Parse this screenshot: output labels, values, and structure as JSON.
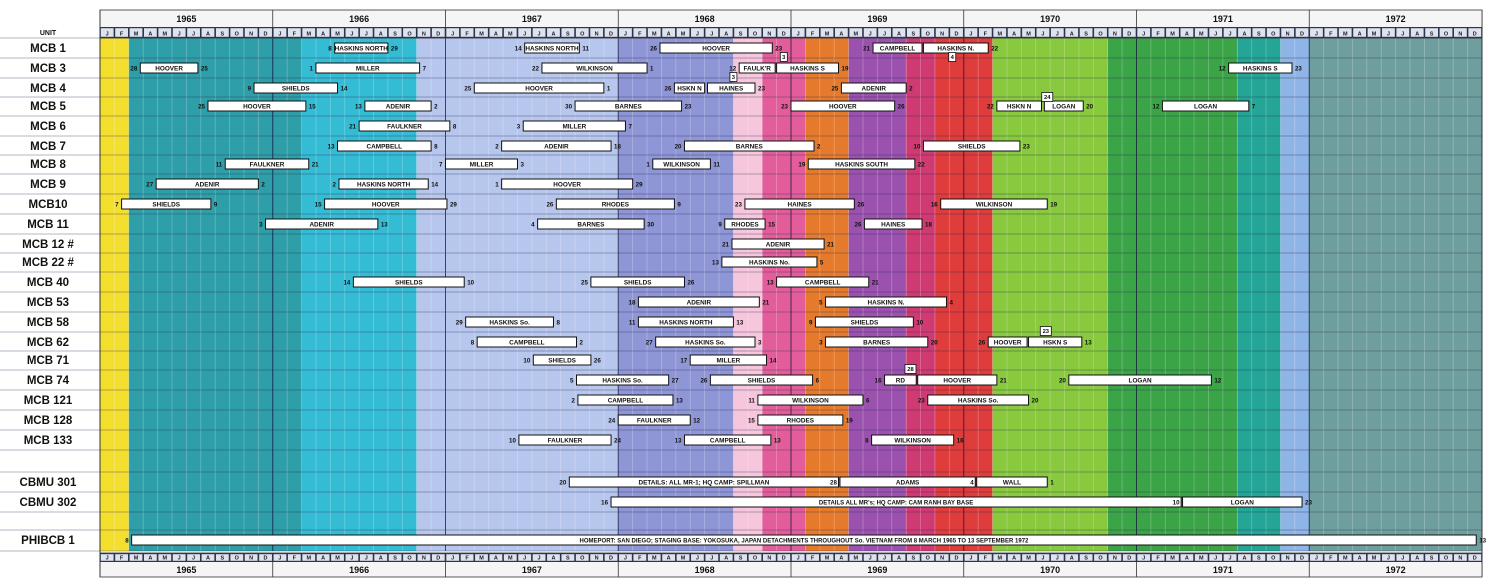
{
  "chart_data": {
    "type": "table",
    "unit_header": "UNIT",
    "years": [
      "1965",
      "1966",
      "1967",
      "1968",
      "1969",
      "1970",
      "1971",
      "1972"
    ],
    "months": [
      "J",
      "F",
      "M",
      "A",
      "M",
      "J",
      "J",
      "A",
      "S",
      "O",
      "N",
      "D"
    ],
    "bands": [
      {
        "start": 0,
        "end": 2,
        "color": "#f4de2e"
      },
      {
        "start": 2,
        "end": 14,
        "color": "#2e9ea8"
      },
      {
        "start": 14,
        "end": 22,
        "color": "#35bcd5"
      },
      {
        "start": 22,
        "end": 36,
        "color": "#b7c6ec"
      },
      {
        "start": 36,
        "end": 44,
        "color": "#8f96d6"
      },
      {
        "start": 44,
        "end": 46,
        "color": "#f6c6dc"
      },
      {
        "start": 46,
        "end": 49,
        "color": "#e25d9a"
      },
      {
        "start": 49,
        "end": 52,
        "color": "#e57a2c"
      },
      {
        "start": 52,
        "end": 56,
        "color": "#9b52ae"
      },
      {
        "start": 56,
        "end": 58,
        "color": "#d03a72"
      },
      {
        "start": 58,
        "end": 62,
        "color": "#df3c3c"
      },
      {
        "start": 62,
        "end": 70,
        "color": "#88c93e"
      },
      {
        "start": 70,
        "end": 79,
        "color": "#3aa447"
      },
      {
        "start": 79,
        "end": 82,
        "color": "#24a596"
      },
      {
        "start": 82,
        "end": 84,
        "color": "#8fb4e6"
      },
      {
        "start": 84,
        "end": 96,
        "color": "#6f9e9e"
      }
    ],
    "units": [
      "MCB 1",
      "MCB 3",
      "MCB 4",
      "MCB 5",
      "MCB 6",
      "MCB 7",
      "MCB 8",
      "MCB 9",
      "MCB10",
      "MCB 11",
      "MCB 12 #",
      "MCB 22 #",
      "MCB 40",
      "MCB 53",
      "MCB 58",
      "MCB 62",
      "MCB 71",
      "MCB 74",
      "MCB 121",
      "MCB 128",
      "MCB 133",
      "CBMU 301",
      "CBMU 302",
      "PHIBCB 1"
    ],
    "deployments": [
      {
        "row": 0,
        "start": 16.3,
        "end": 20.0,
        "label": "HASKINS NORTH",
        "from": "8",
        "to": "29"
      },
      {
        "row": 0,
        "start": 29.5,
        "end": 33.3,
        "label": "HASKINS NORTH",
        "from": "14",
        "to": "11"
      },
      {
        "row": 0,
        "start": 38.9,
        "end": 46.7,
        "label": "HOOVER",
        "from": "26",
        "to": "23"
      },
      {
        "row": 0,
        "start": 53.7,
        "end": 57.1,
        "label": "CAMPBELL",
        "from": "21",
        "to": ""
      },
      {
        "row": 0,
        "start": 57.2,
        "end": 61.7,
        "label": "HASKINS N.",
        "from": "",
        "to": "22"
      },
      {
        "row": 1,
        "start": 2.8,
        "end": 6.8,
        "label": "HOOVER",
        "from": "28",
        "to": "25"
      },
      {
        "row": 1,
        "start": 15.0,
        "end": 22.2,
        "label": "MILLER",
        "from": "1",
        "to": "7"
      },
      {
        "row": 1,
        "start": 30.7,
        "end": 38.0,
        "label": "WILKINSON",
        "from": "22",
        "to": "1"
      },
      {
        "row": 1,
        "start": 44.4,
        "end": 46.9,
        "label": "FAULK'R",
        "from": "12",
        "to": ""
      },
      {
        "row": 1,
        "start": 47.0,
        "end": 51.3,
        "label": "HASKINS S",
        "from": "",
        "to": "19"
      },
      {
        "row": 1,
        "start": 78.4,
        "end": 82.8,
        "label": "HASKINS S",
        "from": "12",
        "to": "23"
      },
      {
        "row": 2,
        "start": 10.7,
        "end": 16.5,
        "label": "SHIELDS",
        "from": "9",
        "to": "14"
      },
      {
        "row": 2,
        "start": 26.0,
        "end": 35.0,
        "label": "HOOVER",
        "from": "25",
        "to": "1"
      },
      {
        "row": 2,
        "start": 39.9,
        "end": 42.0,
        "label": "HSKN N",
        "from": "26",
        "to": ""
      },
      {
        "row": 2,
        "start": 42.2,
        "end": 45.5,
        "label": "HAINES",
        "from": "",
        "to": "23"
      },
      {
        "row": 2,
        "start": 51.5,
        "end": 56.0,
        "label": "ADENIR",
        "from": "25",
        "to": "2"
      },
      {
        "row": 3,
        "start": 7.5,
        "end": 14.3,
        "label": "HOOVER",
        "from": "25",
        "to": "15"
      },
      {
        "row": 3,
        "start": 18.4,
        "end": 23.0,
        "label": "ADENIR",
        "from": "13",
        "to": "2"
      },
      {
        "row": 3,
        "start": 33.0,
        "end": 40.4,
        "label": "BARNES",
        "from": "30",
        "to": "23"
      },
      {
        "row": 3,
        "start": 48.0,
        "end": 55.2,
        "label": "HOOVER",
        "from": "23",
        "to": "26"
      },
      {
        "row": 3,
        "start": 62.3,
        "end": 65.4,
        "label": "HSKN N",
        "from": "22",
        "to": ""
      },
      {
        "row": 3,
        "start": 65.6,
        "end": 68.3,
        "label": "LOGAN",
        "from": "",
        "to": "20"
      },
      {
        "row": 3,
        "start": 73.8,
        "end": 79.8,
        "label": "LOGAN",
        "from": "12",
        "to": "7"
      },
      {
        "row": 4,
        "start": 18.0,
        "end": 24.3,
        "label": "FAULKNER",
        "from": "21",
        "to": "8"
      },
      {
        "row": 4,
        "start": 29.4,
        "end": 36.5,
        "label": "MILLER",
        "from": "3",
        "to": "7"
      },
      {
        "row": 5,
        "start": 16.5,
        "end": 23.0,
        "label": "CAMPBELL",
        "from": "13",
        "to": "8"
      },
      {
        "row": 5,
        "start": 27.9,
        "end": 35.5,
        "label": "ADENIR",
        "from": "2",
        "to": "18"
      },
      {
        "row": 5,
        "start": 40.6,
        "end": 49.6,
        "label": "BARNES",
        "from": "20",
        "to": "2"
      },
      {
        "row": 5,
        "start": 57.2,
        "end": 63.9,
        "label": "SHIELDS",
        "from": "10",
        "to": "23"
      },
      {
        "row": 6,
        "start": 8.7,
        "end": 14.5,
        "label": "FAULKNER",
        "from": "11",
        "to": "21"
      },
      {
        "row": 6,
        "start": 24.0,
        "end": 29.0,
        "label": "MILLER",
        "from": "7",
        "to": "3"
      },
      {
        "row": 6,
        "start": 38.4,
        "end": 42.4,
        "label": "WILKINSON",
        "from": "1",
        "to": "11"
      },
      {
        "row": 6,
        "start": 49.2,
        "end": 56.6,
        "label": "HASKINS SOUTH",
        "from": "19",
        "to": "22"
      },
      {
        "row": 7,
        "start": 3.9,
        "end": 11.0,
        "label": "ADENIR",
        "from": "27",
        "to": "2"
      },
      {
        "row": 7,
        "start": 16.6,
        "end": 22.8,
        "label": "HASKINS NORTH",
        "from": "2",
        "to": "14"
      },
      {
        "row": 7,
        "start": 27.9,
        "end": 37.0,
        "label": "HOOVER",
        "from": "1",
        "to": "29"
      },
      {
        "row": 8,
        "start": 1.5,
        "end": 7.7,
        "label": "SHIELDS",
        "from": "7",
        "to": "9"
      },
      {
        "row": 8,
        "start": 15.6,
        "end": 24.1,
        "label": "HOOVER",
        "from": "15",
        "to": "29"
      },
      {
        "row": 8,
        "start": 31.7,
        "end": 39.9,
        "label": "RHODES",
        "from": "26",
        "to": "9"
      },
      {
        "row": 8,
        "start": 44.8,
        "end": 52.4,
        "label": "HAINES",
        "from": "23",
        "to": "26"
      },
      {
        "row": 8,
        "start": 58.4,
        "end": 65.8,
        "label": "WILKINSON",
        "from": "16",
        "to": "19"
      },
      {
        "row": 9,
        "start": 11.5,
        "end": 19.3,
        "label": "ADENIR",
        "from": "3",
        "to": "13"
      },
      {
        "row": 9,
        "start": 30.4,
        "end": 37.8,
        "label": "BARNES",
        "from": "4",
        "to": "30"
      },
      {
        "row": 9,
        "start": 43.4,
        "end": 46.2,
        "label": "RHODES",
        "from": "9",
        "to": "15"
      },
      {
        "row": 9,
        "start": 53.1,
        "end": 57.1,
        "label": "HAINES",
        "from": "26",
        "to": "18"
      },
      {
        "row": 10,
        "start": 43.9,
        "end": 50.3,
        "label": "ADENIR",
        "from": "21",
        "to": "21"
      },
      {
        "row": 11,
        "start": 43.2,
        "end": 49.8,
        "label": "HASKINS No.",
        "from": "13",
        "to": "5"
      },
      {
        "row": 12,
        "start": 17.6,
        "end": 25.3,
        "label": "SHIELDS",
        "from": "14",
        "to": "10"
      },
      {
        "row": 12,
        "start": 34.1,
        "end": 40.6,
        "label": "SHIELDS",
        "from": "25",
        "to": "26"
      },
      {
        "row": 12,
        "start": 47.0,
        "end": 53.4,
        "label": "CAMPBELL",
        "from": "13",
        "to": "21"
      },
      {
        "row": 13,
        "start": 37.4,
        "end": 45.8,
        "label": "ADENIR",
        "from": "18",
        "to": "21"
      },
      {
        "row": 13,
        "start": 50.4,
        "end": 58.8,
        "label": "HASKINS N.",
        "from": "5",
        "to": "4"
      },
      {
        "row": 14,
        "start": 25.4,
        "end": 31.5,
        "label": "HASKINS So.",
        "from": "29",
        "to": "8"
      },
      {
        "row": 14,
        "start": 37.4,
        "end": 44.0,
        "label": "HASKINS NORTH",
        "from": "11",
        "to": "13"
      },
      {
        "row": 14,
        "start": 49.7,
        "end": 56.5,
        "label": "SHIELDS",
        "from": "9",
        "to": "10"
      },
      {
        "row": 15,
        "start": 26.2,
        "end": 33.1,
        "label": "CAMPBELL",
        "from": "8",
        "to": "2"
      },
      {
        "row": 15,
        "start": 38.6,
        "end": 45.5,
        "label": "HASKINS So.",
        "from": "27",
        "to": "3"
      },
      {
        "row": 15,
        "start": 50.4,
        "end": 57.5,
        "label": "BARNES",
        "from": "3",
        "to": "20"
      },
      {
        "row": 15,
        "start": 61.7,
        "end": 64.4,
        "label": "HOOVER",
        "from": "26",
        "to": ""
      },
      {
        "row": 15,
        "start": 64.5,
        "end": 68.2,
        "label": "HSKN S",
        "from": "",
        "to": "13"
      },
      {
        "row": 16,
        "start": 30.1,
        "end": 34.1,
        "label": "SHIELDS",
        "from": "10",
        "to": "26"
      },
      {
        "row": 16,
        "start": 41.0,
        "end": 46.3,
        "label": "MILLER",
        "from": "17",
        "to": "14"
      },
      {
        "row": 17,
        "start": 33.1,
        "end": 39.5,
        "label": "HASKINS So.",
        "from": "5",
        "to": "27"
      },
      {
        "row": 17,
        "start": 42.4,
        "end": 49.5,
        "label": "SHIELDS",
        "from": "26",
        "to": "6"
      },
      {
        "row": 17,
        "start": 54.5,
        "end": 56.7,
        "label": "RD",
        "from": "16",
        "to": ""
      },
      {
        "row": 17,
        "start": 56.8,
        "end": 62.3,
        "label": "HOOVER",
        "from": "",
        "to": "21"
      },
      {
        "row": 17,
        "start": 67.3,
        "end": 77.2,
        "label": "LOGAN",
        "from": "20",
        "to": "12"
      },
      {
        "row": 18,
        "start": 33.2,
        "end": 39.8,
        "label": "CAMPBELL",
        "from": "2",
        "to": "13"
      },
      {
        "row": 18,
        "start": 45.7,
        "end": 53.0,
        "label": "WILKINSON",
        "from": "11",
        "to": "6"
      },
      {
        "row": 18,
        "start": 57.5,
        "end": 64.5,
        "label": "HASKINS So.",
        "from": "23",
        "to": "20"
      },
      {
        "row": 19,
        "start": 36.0,
        "end": 41.0,
        "label": "FAULKNER",
        "from": "24",
        "to": "12"
      },
      {
        "row": 19,
        "start": 45.7,
        "end": 51.6,
        "label": "RHODES",
        "from": "15",
        "to": "19"
      },
      {
        "row": 20,
        "start": 29.1,
        "end": 35.5,
        "label": "FAULKNER",
        "from": "10",
        "to": "24"
      },
      {
        "row": 20,
        "start": 40.6,
        "end": 46.6,
        "label": "CAMPBELL",
        "from": "13",
        "to": "13"
      },
      {
        "row": 20,
        "start": 53.6,
        "end": 59.3,
        "label": "WILKINSON",
        "from": "8",
        "to": "16"
      },
      {
        "row": 21,
        "start": 32.6,
        "end": 51.3,
        "label": "DETAILS: ALL MR-1; HQ CAMP: SPILLMAN",
        "from": "20",
        "to": ""
      },
      {
        "row": 21,
        "start": 51.4,
        "end": 60.8,
        "label": "ADAMS",
        "from": "28",
        "to": ""
      },
      {
        "row": 21,
        "start": 60.9,
        "end": 65.8,
        "label": "WALL",
        "from": "4",
        "to": "1"
      },
      {
        "row": 22,
        "start": 35.5,
        "end": 75.1,
        "label": "DETAILS ALL MR's; HQ CAMP: CAM RANH BAY BASE",
        "from": "16",
        "to": ""
      },
      {
        "row": 22,
        "start": 75.2,
        "end": 83.5,
        "label": "LOGAN",
        "from": "10",
        "to": "23"
      },
      {
        "row": 23,
        "start": 2.2,
        "end": 95.6,
        "label": "HOMEPORT: SAN DIEGO;   STAGING BASE: YOKOSUKA, JAPAN      DETACHMENTS THROUGHOUT So. VIETNAM FROM 8 MARCH 1965 TO 13 SEPTEMBER 1972",
        "from": "8",
        "to": "13"
      }
    ],
    "callouts": [
      {
        "row": 0,
        "month": 47.5,
        "label": "3"
      },
      {
        "row": 0,
        "month": 59.2,
        "label": "4"
      },
      {
        "row": 1,
        "month": 44.0,
        "label": "3"
      },
      {
        "row": 2,
        "month": 65.8,
        "label": "24"
      },
      {
        "row": 14,
        "month": 65.7,
        "label": "23"
      },
      {
        "row": 16,
        "month": 56.3,
        "label": "28"
      }
    ]
  }
}
